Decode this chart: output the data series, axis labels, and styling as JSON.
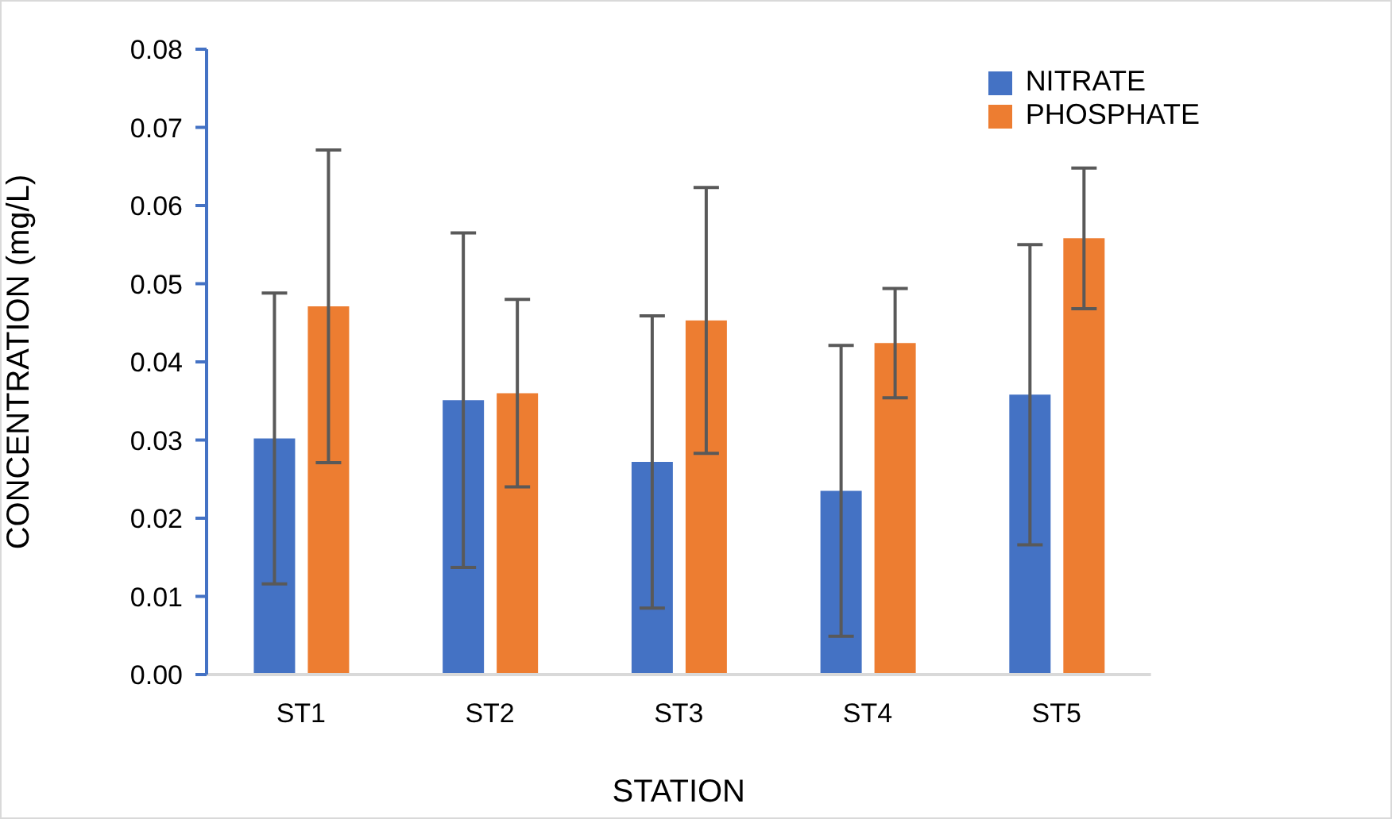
{
  "chart_data": {
    "type": "bar",
    "xlabel": "STATION",
    "ylabel": "CONCENTRATION (mg/L)",
    "categories": [
      "ST1",
      "ST2",
      "ST3",
      "ST4",
      "ST5"
    ],
    "series": [
      {
        "name": "NITRATE",
        "color": "#4472c4",
        "values": [
          0.0302,
          0.0351,
          0.0272,
          0.0235,
          0.0358
        ],
        "errors": [
          0.0186,
          0.0214,
          0.0187,
          0.0186,
          0.0192
        ]
      },
      {
        "name": "PHOSPHATE",
        "color": "#ed7d31",
        "values": [
          0.0471,
          0.036,
          0.0453,
          0.0424,
          0.0558
        ],
        "errors": [
          0.02,
          0.012,
          0.017,
          0.007,
          0.009
        ]
      }
    ],
    "ylim": [
      0,
      0.08
    ],
    "yticks": [
      {
        "value": 0,
        "label": "0.00"
      },
      {
        "value": 0.01,
        "label": "0.01"
      },
      {
        "value": 0.02,
        "label": "0.02"
      },
      {
        "value": 0.03,
        "label": "0.03"
      },
      {
        "value": 0.04,
        "label": "0.04"
      },
      {
        "value": 0.05,
        "label": "0.05"
      },
      {
        "value": 0.06,
        "label": "0.06"
      },
      {
        "value": 0.07,
        "label": "0.07"
      },
      {
        "value": 0.08,
        "label": "0.08"
      }
    ],
    "grid": false,
    "legend": "top right"
  }
}
